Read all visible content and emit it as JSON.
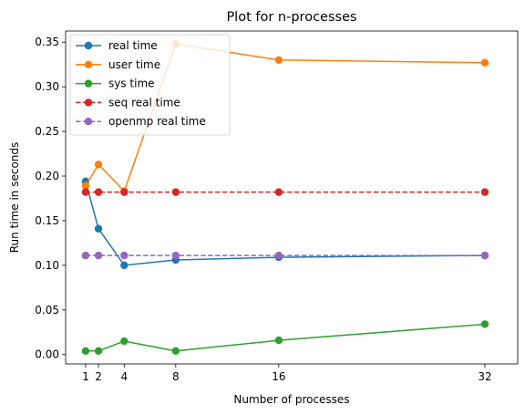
{
  "chart_data": {
    "type": "line",
    "title": "Plot for n-processes",
    "xlabel": "Number of processes",
    "ylabel": "Run time in seconds",
    "x": [
      1,
      2,
      4,
      8,
      16,
      32
    ],
    "xticks": [
      1,
      2,
      4,
      8,
      16,
      32
    ],
    "yticks": [
      0.0,
      0.05,
      0.1,
      0.15,
      0.2,
      0.25,
      0.3,
      0.35
    ],
    "ytick_labels": [
      "0.00",
      "0.05",
      "0.10",
      "0.15",
      "0.20",
      "0.25",
      "0.30",
      "0.35"
    ],
    "xlim": [
      -0.55,
      34.55
    ],
    "ylim": [
      -0.0105,
      0.3625
    ],
    "grid": false,
    "legend": "top-left",
    "series": [
      {
        "name": "real time",
        "color": "#1f77b4",
        "style": "solid",
        "marker": "circle",
        "values": [
          0.194,
          0.141,
          0.1,
          0.106,
          0.109,
          0.111
        ]
      },
      {
        "name": "user time",
        "color": "#ff7f0e",
        "style": "solid",
        "marker": "circle",
        "values": [
          0.189,
          0.213,
          0.183,
          0.348,
          0.33,
          0.327
        ]
      },
      {
        "name": "sys time",
        "color": "#2ca02c",
        "style": "solid",
        "marker": "circle",
        "values": [
          0.004,
          0.004,
          0.015,
          0.004,
          0.016,
          0.034
        ]
      },
      {
        "name": "seq real time",
        "color": "#d62728",
        "style": "dashed",
        "marker": "circle",
        "values": [
          0.182,
          0.182,
          0.182,
          0.182,
          0.182,
          0.182
        ]
      },
      {
        "name": "openmp real time",
        "color": "#9467bd",
        "style": "dashed",
        "marker": "circle",
        "values": [
          0.111,
          0.111,
          0.111,
          0.111,
          0.111,
          0.111
        ]
      }
    ]
  }
}
